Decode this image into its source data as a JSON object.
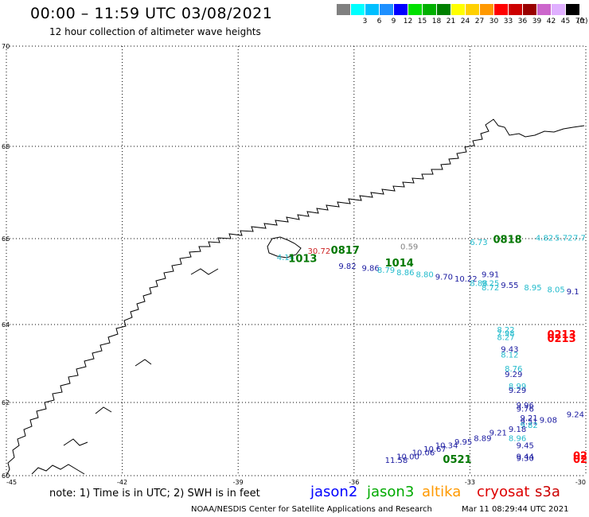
{
  "header": {
    "title": "00:00 – 11:59 UTC 03/08/2021",
    "subtitle": "12 hour collection of altimeter wave heights"
  },
  "legend": {
    "unit": "(ft)",
    "bins": [
      {
        "label": "",
        "color": "#808080"
      },
      {
        "label": "3",
        "color": "#00ffff"
      },
      {
        "label": "6",
        "color": "#00bfff"
      },
      {
        "label": "9",
        "color": "#1e90ff"
      },
      {
        "label": "12",
        "color": "#0000ff"
      },
      {
        "label": "15",
        "color": "#00e000"
      },
      {
        "label": "18",
        "color": "#00b000"
      },
      {
        "label": "21",
        "color": "#008000"
      },
      {
        "label": "24",
        "color": "#ffff00"
      },
      {
        "label": "27",
        "color": "#ffd000"
      },
      {
        "label": "30",
        "color": "#ff9900"
      },
      {
        "label": "33",
        "color": "#ff0000"
      },
      {
        "label": "36",
        "color": "#cc0000"
      },
      {
        "label": "39",
        "color": "#990000"
      },
      {
        "label": "42",
        "color": "#cc66cc"
      },
      {
        "label": "45",
        "color": "#e0b0ff"
      },
      {
        "label": "70",
        "color": "#000000"
      }
    ]
  },
  "axes": {
    "lon_labels": [
      "-45",
      "-42",
      "-39",
      "-36",
      "-33",
      "-30"
    ],
    "lat_labels": [
      "70",
      "68",
      "66",
      "64",
      "62",
      "60"
    ],
    "grid": "dotted"
  },
  "chart_data": {
    "type": "scatter",
    "xlim": [
      -45,
      -30
    ],
    "ylim": [
      60,
      70
    ],
    "points": [
      {
        "lon": -38.0,
        "lat": 65.5,
        "text": "4.14",
        "color": "#22bbcc"
      },
      {
        "lon": -37.2,
        "lat": 65.65,
        "text": "30.72",
        "color": "#cc2222"
      },
      {
        "lon": -34.8,
        "lat": 65.75,
        "text": "0.59",
        "color": "#808080"
      },
      {
        "lon": -33.0,
        "lat": 65.85,
        "text": "6.73",
        "color": "#22bbcc"
      },
      {
        "lon": -31.3,
        "lat": 65.95,
        "text": "4.82",
        "color": "#22bbcc"
      },
      {
        "lon": -30.8,
        "lat": 65.95,
        "text": "5.72",
        "color": "#22bbcc"
      },
      {
        "lon": -30.3,
        "lat": 65.95,
        "text": "7.7",
        "color": "#22bbcc"
      },
      {
        "lon": -36.4,
        "lat": 65.3,
        "text": "9.82",
        "color": "#1a1aa0"
      },
      {
        "lon": -35.8,
        "lat": 65.25,
        "text": "9.86",
        "color": "#1a1aa0"
      },
      {
        "lon": -35.4,
        "lat": 65.2,
        "text": "8.79",
        "color": "#22bbcc"
      },
      {
        "lon": -34.9,
        "lat": 65.15,
        "text": "8.86",
        "color": "#22bbcc"
      },
      {
        "lon": -34.4,
        "lat": 65.1,
        "text": "8.80",
        "color": "#22bbcc"
      },
      {
        "lon": -33.9,
        "lat": 65.05,
        "text": "9.70",
        "color": "#1a1aa0"
      },
      {
        "lon": -33.4,
        "lat": 65.0,
        "text": "10.22",
        "color": "#1a1aa0"
      },
      {
        "lon": -32.7,
        "lat": 65.1,
        "text": "9.91",
        "color": "#1a1aa0"
      },
      {
        "lon": -33.0,
        "lat": 64.9,
        "text": "8.88",
        "color": "#22bbcc"
      },
      {
        "lon": -32.7,
        "lat": 64.9,
        "text": "9.25",
        "color": "#22bbcc"
      },
      {
        "lon": -32.7,
        "lat": 64.8,
        "text": "8.72",
        "color": "#22bbcc"
      },
      {
        "lon": -32.2,
        "lat": 64.85,
        "text": "9.55",
        "color": "#1a1aa0"
      },
      {
        "lon": -31.6,
        "lat": 64.8,
        "text": "8.95",
        "color": "#22bbcc"
      },
      {
        "lon": -31.0,
        "lat": 64.75,
        "text": "8.05",
        "color": "#22bbcc"
      },
      {
        "lon": -30.5,
        "lat": 64.7,
        "text": "9.1",
        "color": "#1a1aa0"
      },
      {
        "lon": -32.3,
        "lat": 63.8,
        "text": "8.22",
        "color": "#22bbcc"
      },
      {
        "lon": -32.3,
        "lat": 63.7,
        "text": "7.98",
        "color": "#22bbcc"
      },
      {
        "lon": -32.3,
        "lat": 63.6,
        "text": "8.27",
        "color": "#22bbcc"
      },
      {
        "lon": -32.2,
        "lat": 63.3,
        "text": "9.43",
        "color": "#1a1aa0"
      },
      {
        "lon": -32.2,
        "lat": 63.15,
        "text": "8.12",
        "color": "#22bbcc"
      },
      {
        "lon": -32.1,
        "lat": 62.8,
        "text": "8.76",
        "color": "#22bbcc"
      },
      {
        "lon": -32.1,
        "lat": 62.65,
        "text": "9.29",
        "color": "#1a1aa0"
      },
      {
        "lon": -32.0,
        "lat": 62.35,
        "text": "8.99",
        "color": "#22bbcc"
      },
      {
        "lon": -32.0,
        "lat": 62.25,
        "text": "9.29",
        "color": "#1a1aa0"
      },
      {
        "lon": -31.8,
        "lat": 61.85,
        "text": "9.96",
        "color": "#1a1aa0"
      },
      {
        "lon": -31.8,
        "lat": 61.75,
        "text": "9.76",
        "color": "#1a1aa0"
      },
      {
        "lon": -31.7,
        "lat": 61.5,
        "text": "9.21",
        "color": "#1a1aa0"
      },
      {
        "lon": -31.7,
        "lat": 61.4,
        "text": "9.51",
        "color": "#1a1aa0"
      },
      {
        "lon": -31.2,
        "lat": 61.45,
        "text": "9.08",
        "color": "#1a1aa0"
      },
      {
        "lon": -30.5,
        "lat": 61.6,
        "text": "9.24",
        "color": "#1a1aa0"
      },
      {
        "lon": -31.7,
        "lat": 61.3,
        "text": "9.82",
        "color": "#22bbcc"
      },
      {
        "lon": -32.0,
        "lat": 61.2,
        "text": "9.18",
        "color": "#1a1aa0"
      },
      {
        "lon": -32.5,
        "lat": 61.1,
        "text": "9.21",
        "color": "#1a1aa0"
      },
      {
        "lon": -32.9,
        "lat": 60.95,
        "text": "8.89",
        "color": "#1a1aa0"
      },
      {
        "lon": -33.4,
        "lat": 60.85,
        "text": "9.95",
        "color": "#1a1aa0"
      },
      {
        "lon": -33.9,
        "lat": 60.75,
        "text": "10.34",
        "color": "#1a1aa0"
      },
      {
        "lon": -34.2,
        "lat": 60.65,
        "text": "10.67",
        "color": "#1a1aa0"
      },
      {
        "lon": -34.5,
        "lat": 60.55,
        "text": "10.06",
        "color": "#1a1aa0"
      },
      {
        "lon": -34.9,
        "lat": 60.45,
        "text": "10.00",
        "color": "#1a1aa0"
      },
      {
        "lon": -35.2,
        "lat": 60.35,
        "text": "11.58",
        "color": "#1a1aa0"
      },
      {
        "lon": -32.0,
        "lat": 60.95,
        "text": "8.96",
        "color": "#22bbcc"
      },
      {
        "lon": -31.8,
        "lat": 60.75,
        "text": "9.45",
        "color": "#1a1aa0"
      },
      {
        "lon": -31.8,
        "lat": 60.45,
        "text": "9.44",
        "color": "#1a1aa0"
      },
      {
        "lon": -31.8,
        "lat": 60.4,
        "text": "9.30",
        "color": "#1a1aa0"
      }
    ],
    "passes": [
      {
        "lon": -37.7,
        "lat": 65.45,
        "text": "1013",
        "color": "#007700"
      },
      {
        "lon": -36.6,
        "lat": 65.65,
        "text": "0817",
        "color": "#007700"
      },
      {
        "lon": -35.2,
        "lat": 65.35,
        "text": "1014",
        "color": "#007700"
      },
      {
        "lon": -32.4,
        "lat": 65.9,
        "text": "0818",
        "color": "#007700"
      },
      {
        "lon": -31.0,
        "lat": 63.65,
        "text": "0213",
        "color": "#ff0000"
      },
      {
        "lon": -31.0,
        "lat": 63.55,
        "text": "0213",
        "color": "#ff0000"
      },
      {
        "lon": -33.7,
        "lat": 60.35,
        "text": "0521",
        "color": "#007700"
      },
      {
        "lon": -30.3,
        "lat": 60.45,
        "text": "02",
        "color": "#ff0000"
      },
      {
        "lon": -30.3,
        "lat": 60.35,
        "text": "02",
        "color": "#ff0000"
      }
    ]
  },
  "footer": {
    "note": "note: 1) Time is in UTC; 2) SWH is in feet",
    "satellites": [
      {
        "name": "jason2",
        "color": "#0000ff"
      },
      {
        "name": "jason3",
        "color": "#00aa00"
      },
      {
        "name": "altika",
        "color": "#ff9900"
      },
      {
        "name": "cryosat",
        "color": "#dd0000"
      },
      {
        "name": "s3a",
        "color": "#cc0000"
      }
    ],
    "credit": "NOAA/NESDIS Center for Satellite Applications and Research",
    "timestamp": "Mar 11 08:29:44 UTC 2021"
  }
}
